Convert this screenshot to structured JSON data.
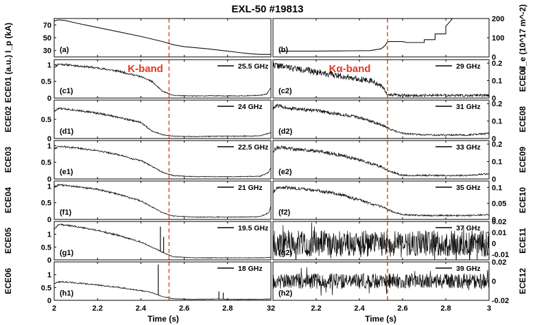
{
  "chart_data": {
    "type": "line",
    "title": "EXL-50 #19813",
    "xlabel": "Time (s)",
    "xlim": [
      2,
      3
    ],
    "x_ticks": [
      2,
      2.2,
      2.4,
      2.6,
      2.8,
      3
    ],
    "x_tick_labels_left": [
      "2",
      "2.2",
      "2.4",
      "2.6",
      "2.8",
      "3"
    ],
    "x_tick_labels_right": [
      "2",
      "2.2",
      "2.4",
      "2.6",
      "2.8",
      "3"
    ],
    "marker_time": 2.53,
    "marker_color": "#e8562a",
    "band_labels": {
      "left": "K-band",
      "right": "Kα-band",
      "color": "#e8341c"
    },
    "panels": [
      {
        "id": "a",
        "label": "(a)",
        "col": 0,
        "row": 0,
        "ylabel": "I_p (kA)",
        "yaxis": "left",
        "ylim": [
          20,
          80
        ],
        "yticks": [
          30,
          50,
          70
        ],
        "ytick_labels": [
          "30",
          "50",
          "70"
        ],
        "series": [
          {
            "x": [
              2.0,
              2.02,
              2.05,
              2.1,
              2.2,
              2.3,
              2.4,
              2.5,
              2.55,
              2.6,
              2.7,
              2.8,
              2.85,
              2.9,
              2.95,
              3.0
            ],
            "y": [
              76,
              78,
              77,
              73,
              66,
              59,
              52,
              44,
              39,
              36,
              33,
              29,
              27,
              25,
              24,
              24
            ]
          }
        ]
      },
      {
        "id": "b",
        "label": "(b)",
        "col": 1,
        "row": 0,
        "ylabel": "n_e (10^17 m^-2)",
        "yaxis": "right",
        "ylim": [
          0,
          200
        ],
        "yticks": [
          0,
          100,
          200
        ],
        "ytick_labels": [
          "0",
          "100",
          "200"
        ],
        "series": [
          {
            "x": [
              2.03,
              2.1,
              2.2,
              2.3,
              2.45,
              2.5,
              2.52,
              2.53,
              2.6,
              2.62,
              2.62,
              2.7,
              2.7,
              2.75,
              2.75,
              2.8,
              2.8,
              2.82,
              2.83
            ],
            "y": [
              30,
              30,
              30,
              31,
              33,
              42,
              60,
              80,
              80,
              75,
              75,
              75,
              90,
              90,
              120,
              120,
              160,
              185,
              200
            ]
          }
        ]
      },
      {
        "id": "c1",
        "label": "(c1)",
        "col": 0,
        "row": 1,
        "ylabel": "ECE01 (a.u.)",
        "yaxis": "left",
        "ylim": [
          0,
          1.15
        ],
        "yticks": [
          0,
          0.5,
          1
        ],
        "ytick_labels": [
          "0",
          "0.5",
          "1"
        ],
        "legend": "25.5 GHz",
        "noise": 0.03,
        "seed": 11,
        "series": [
          {
            "x": [
              2.0,
              2.02,
              2.05,
              2.1,
              2.2,
              2.3,
              2.35,
              2.4,
              2.45,
              2.5,
              2.55,
              2.65,
              2.75,
              2.85,
              2.95,
              2.98,
              3.0
            ],
            "y": [
              0.92,
              1.02,
              1.0,
              0.97,
              0.9,
              0.8,
              0.72,
              0.64,
              0.5,
              0.2,
              0.08,
              0.06,
              0.07,
              0.06,
              0.08,
              0.12,
              0.3
            ]
          }
        ]
      },
      {
        "id": "c2",
        "label": "(c2)",
        "col": 1,
        "row": 1,
        "ylabel": "ECE07",
        "yaxis": "right",
        "ylim": [
          0,
          0.22
        ],
        "yticks": [
          0,
          0.1,
          0.2
        ],
        "ytick_labels": [
          "0",
          "0.1",
          "0.2"
        ],
        "legend": "29 GHz",
        "noise": 0.018,
        "seed": 22,
        "series": [
          {
            "x": [
              2.0,
              2.05,
              2.1,
              2.2,
              2.3,
              2.4,
              2.45,
              2.5,
              2.52,
              2.53,
              2.6,
              2.7,
              2.8,
              2.9,
              3.0
            ],
            "y": [
              0.19,
              0.18,
              0.17,
              0.15,
              0.13,
              0.11,
              0.1,
              0.07,
              0.04,
              0.02,
              0.015,
              0.015,
              0.015,
              0.015,
              0.015
            ]
          }
        ]
      },
      {
        "id": "d1",
        "label": "(d1)",
        "col": 0,
        "row": 2,
        "ylabel": "ECE02",
        "yaxis": "left",
        "ylim": [
          0,
          1.0
        ],
        "yticks": [
          0,
          0.5
        ],
        "ytick_labels": [
          "0",
          "0.5"
        ],
        "legend": "24 GHz",
        "noise": 0.025,
        "seed": 33,
        "series": [
          {
            "x": [
              2.0,
              2.02,
              2.05,
              2.1,
              2.2,
              2.3,
              2.35,
              2.4,
              2.45,
              2.5,
              2.55,
              2.65,
              2.75,
              2.85,
              2.95,
              3.0
            ],
            "y": [
              0.7,
              0.78,
              0.77,
              0.74,
              0.66,
              0.55,
              0.48,
              0.42,
              0.2,
              0.1,
              0.06,
              0.05,
              0.06,
              0.06,
              0.07,
              0.15
            ]
          }
        ]
      },
      {
        "id": "d2",
        "label": "(d2)",
        "col": 1,
        "row": 2,
        "ylabel": "ECE08",
        "yaxis": "right",
        "ylim": [
          0,
          0.22
        ],
        "yticks": [
          0,
          0.1,
          0.2
        ],
        "ytick_labels": [
          "0",
          "0.1",
          "0.2"
        ],
        "legend": "31 GHz",
        "noise": 0.01,
        "seed": 44,
        "series": [
          {
            "x": [
              2.0,
              2.02,
              2.05,
              2.1,
              2.2,
              2.3,
              2.4,
              2.5,
              2.55,
              2.6,
              2.7,
              2.8,
              2.9,
              3.0
            ],
            "y": [
              0.17,
              0.19,
              0.18,
              0.17,
              0.16,
              0.14,
              0.12,
              0.08,
              0.05,
              0.03,
              0.02,
              0.02,
              0.02,
              0.03
            ]
          }
        ]
      },
      {
        "id": "e1",
        "label": "(e1)",
        "col": 0,
        "row": 3,
        "ylabel": "ECE03",
        "yaxis": "left",
        "ylim": [
          0,
          1.15
        ],
        "yticks": [
          0,
          0.5,
          1
        ],
        "ytick_labels": [
          "0",
          "0.5",
          "1"
        ],
        "legend": "22.5 GHz",
        "noise": 0.025,
        "seed": 55,
        "series": [
          {
            "x": [
              2.0,
              2.02,
              2.05,
              2.1,
              2.2,
              2.3,
              2.35,
              2.4,
              2.45,
              2.5,
              2.55,
              2.65,
              2.75,
              2.85,
              2.95,
              2.99,
              3.0
            ],
            "y": [
              0.9,
              0.98,
              0.96,
              0.93,
              0.85,
              0.72,
              0.62,
              0.55,
              0.38,
              0.2,
              0.1,
              0.07,
              0.07,
              0.07,
              0.08,
              0.2,
              0.35
            ]
          }
        ]
      },
      {
        "id": "e2",
        "label": "(e2)",
        "col": 1,
        "row": 3,
        "ylabel": "ECE09",
        "yaxis": "right",
        "ylim": [
          0,
          0.22
        ],
        "yticks": [
          0,
          0.1,
          0.2
        ],
        "ytick_labels": [
          "0",
          "0.1",
          "0.2"
        ],
        "legend": "33 GHz",
        "noise": 0.01,
        "seed": 66,
        "series": [
          {
            "x": [
              2.0,
              2.02,
              2.05,
              2.1,
              2.2,
              2.3,
              2.4,
              2.5,
              2.55,
              2.6,
              2.7,
              2.8,
              2.9,
              3.0
            ],
            "y": [
              0.16,
              0.18,
              0.18,
              0.17,
              0.16,
              0.14,
              0.11,
              0.07,
              0.04,
              0.02,
              0.02,
              0.02,
              0.02,
              0.03
            ]
          }
        ]
      },
      {
        "id": "f1",
        "label": "(f1)",
        "col": 0,
        "row": 4,
        "ylabel": "ECE04",
        "yaxis": "left",
        "ylim": [
          0,
          1.15
        ],
        "yticks": [
          0,
          0.5,
          1
        ],
        "ytick_labels": [
          "0",
          "0.5",
          "1"
        ],
        "legend": "21 GHz",
        "noise": 0.025,
        "seed": 77,
        "series": [
          {
            "x": [
              2.0,
              2.02,
              2.05,
              2.1,
              2.2,
              2.3,
              2.35,
              2.4,
              2.45,
              2.5,
              2.55,
              2.65,
              2.75,
              2.85,
              2.95,
              2.99,
              3.0
            ],
            "y": [
              0.95,
              1.04,
              1.02,
              0.98,
              0.9,
              0.75,
              0.65,
              0.55,
              0.38,
              0.2,
              0.1,
              0.07,
              0.07,
              0.07,
              0.08,
              0.2,
              0.4
            ]
          }
        ]
      },
      {
        "id": "f2",
        "label": "(f2)",
        "col": 1,
        "row": 4,
        "ylabel": "ECE10",
        "yaxis": "right",
        "ylim": [
          0,
          0.12
        ],
        "yticks": [
          0,
          0.05,
          0.1
        ],
        "ytick_labels": [
          "0",
          "0.05",
          "0.1"
        ],
        "legend": "35 GHz",
        "noise": 0.005,
        "seed": 88,
        "series": [
          {
            "x": [
              2.0,
              2.02,
              2.05,
              2.1,
              2.2,
              2.3,
              2.4,
              2.5,
              2.55,
              2.6,
              2.7,
              2.8,
              2.9,
              3.0
            ],
            "y": [
              0.085,
              0.1,
              0.1,
              0.098,
              0.09,
              0.08,
              0.06,
              0.04,
              0.025,
              0.015,
              0.012,
              0.012,
              0.012,
              0.015
            ]
          }
        ]
      },
      {
        "id": "g1",
        "label": "(g1)",
        "col": 0,
        "row": 5,
        "ylabel": "ECE05",
        "yaxis": "left",
        "ylim": [
          0,
          1.5
        ],
        "yticks": [
          0,
          0.5,
          1
        ],
        "ytick_labels": [
          "0",
          "0.5",
          "1"
        ],
        "legend": "19.5 GHz",
        "noise": 0.03,
        "seed": 99,
        "spikes": [
          [
            2.49,
            1.3
          ],
          [
            2.505,
            0.9
          ]
        ],
        "series": [
          {
            "x": [
              2.0,
              2.02,
              2.05,
              2.1,
              2.2,
              2.3,
              2.35,
              2.4,
              2.45,
              2.5,
              2.55,
              2.65,
              2.75,
              2.85,
              2.95,
              3.0
            ],
            "y": [
              1.2,
              1.38,
              1.36,
              1.3,
              1.15,
              0.95,
              0.82,
              0.7,
              0.5,
              0.3,
              0.12,
              0.08,
              0.08,
              0.08,
              0.08,
              0.1
            ]
          }
        ]
      },
      {
        "id": "g2",
        "label": "(g2)",
        "col": 1,
        "row": 5,
        "ylabel": "ECE11",
        "yaxis": "right",
        "ylim": [
          -0.015,
          0.02
        ],
        "yticks": [
          -0.01,
          0,
          0.01,
          0.02
        ],
        "ytick_labels": [
          "-0.01",
          "0",
          "0.01",
          "0.02"
        ],
        "legend": "37 GHz",
        "noise": 0.012,
        "seed": 111,
        "noise_only": true,
        "series": [
          {
            "x": [
              2.0,
              3.0
            ],
            "y": [
              0,
              0
            ]
          }
        ]
      },
      {
        "id": "h1",
        "label": "(h1)",
        "col": 0,
        "row": 6,
        "ylabel": "ECE06",
        "yaxis": "left",
        "ylim": [
          0,
          1.5
        ],
        "yticks": [
          0,
          0.5,
          1
        ],
        "ytick_labels": [
          "0",
          "0.5",
          "1"
        ],
        "legend": "18 GHz",
        "noise": 0.03,
        "seed": 122,
        "spikes": [
          [
            2.48,
            1.4
          ],
          [
            2.76,
            0.35
          ],
          [
            2.78,
            0.3
          ]
        ],
        "series": [
          {
            "x": [
              2.0,
              2.02,
              2.05,
              2.1,
              2.2,
              2.3,
              2.4,
              2.45,
              2.5,
              2.55,
              2.65,
              2.75,
              2.85,
              2.95,
              3.0
            ],
            "y": [
              0.65,
              0.72,
              0.72,
              0.68,
              0.6,
              0.5,
              0.38,
              0.3,
              0.15,
              0.06,
              0.04,
              0.05,
              0.04,
              0.04,
              0.05
            ]
          }
        ]
      },
      {
        "id": "h2",
        "label": "(h2)",
        "col": 1,
        "row": 6,
        "ylabel": "ECE12",
        "yaxis": "right",
        "ylim": [
          -0.02,
          0.02
        ],
        "yticks": [
          -0.02,
          0,
          0.02
        ],
        "ytick_labels": [
          "-0.02",
          "0",
          "0.02"
        ],
        "legend": "39 GHz",
        "noise": 0.008,
        "seed": 133,
        "noise_only": true,
        "series": [
          {
            "x": [
              2.0,
              3.0
            ],
            "y": [
              0,
              0
            ]
          }
        ]
      }
    ]
  }
}
